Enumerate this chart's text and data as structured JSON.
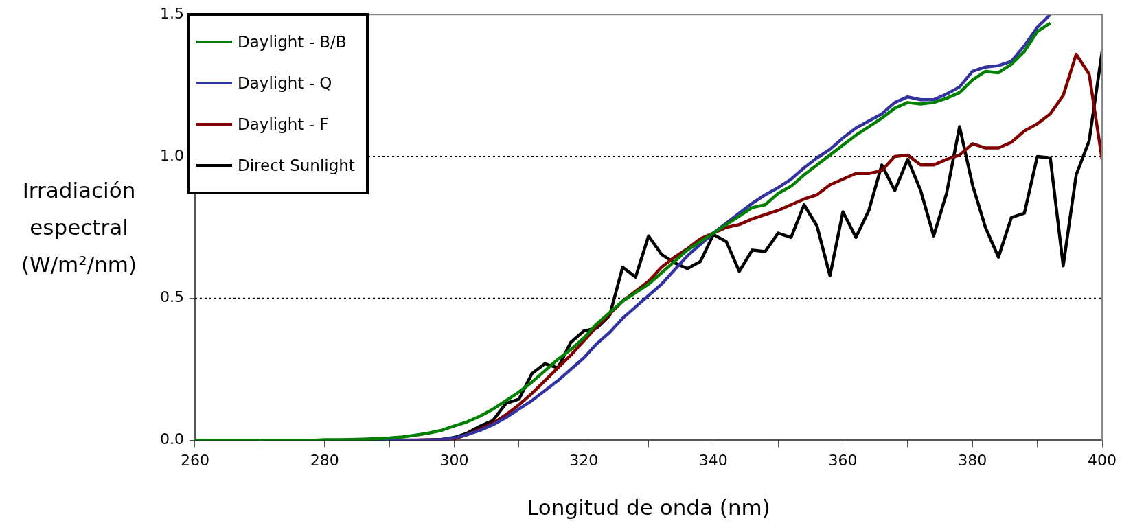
{
  "chart_data": {
    "type": "line",
    "xlabel": "Longitud de onda (nm)",
    "ylabel": "Irradiación espectral (W/m²/nm)",
    "x": [
      260,
      262,
      264,
      266,
      268,
      270,
      272,
      274,
      276,
      278,
      280,
      282,
      284,
      286,
      288,
      290,
      292,
      294,
      296,
      298,
      300,
      302,
      304,
      306,
      308,
      310,
      312,
      314,
      316,
      318,
      320,
      322,
      324,
      326,
      328,
      330,
      332,
      334,
      336,
      338,
      340,
      342,
      344,
      346,
      348,
      350,
      352,
      354,
      356,
      358,
      360,
      362,
      364,
      366,
      368,
      370,
      372,
      374,
      376,
      378,
      380,
      382,
      384,
      386,
      388,
      390,
      392,
      394,
      396,
      398,
      400
    ],
    "series": [
      {
        "name": "Daylight - B/B",
        "color": "#008000",
        "values": [
          0,
          0,
          0,
          0,
          0,
          0,
          0,
          0,
          0,
          0,
          0.002,
          0.002,
          0.003,
          0.004,
          0.006,
          0.008,
          0.012,
          0.018,
          0.025,
          0.035,
          0.05,
          0.065,
          0.085,
          0.11,
          0.14,
          0.17,
          0.205,
          0.245,
          0.285,
          0.32,
          0.36,
          0.41,
          0.45,
          0.49,
          0.52,
          0.55,
          0.59,
          0.63,
          0.67,
          0.7,
          0.73,
          0.76,
          0.79,
          0.82,
          0.83,
          0.87,
          0.895,
          0.935,
          0.97,
          1.005,
          1.04,
          1.075,
          1.105,
          1.135,
          1.17,
          1.19,
          1.185,
          1.19,
          1.205,
          1.225,
          1.27,
          1.3,
          1.295,
          1.325,
          1.37,
          1.44,
          1.47,
          null,
          null,
          null,
          null
        ]
      },
      {
        "name": "Daylight - Q",
        "color": "#3333a0",
        "values": [
          null,
          null,
          null,
          null,
          null,
          null,
          null,
          null,
          null,
          null,
          null,
          null,
          null,
          null,
          0,
          0,
          0,
          0,
          0.001,
          0.003,
          0.008,
          0.02,
          0.035,
          0.055,
          0.08,
          0.11,
          0.14,
          0.175,
          0.21,
          0.25,
          0.29,
          0.34,
          0.38,
          0.43,
          0.47,
          0.51,
          0.55,
          0.6,
          0.65,
          0.69,
          0.73,
          0.765,
          0.8,
          0.835,
          0.865,
          0.89,
          0.92,
          0.96,
          0.995,
          1.025,
          1.065,
          1.1,
          1.125,
          1.15,
          1.19,
          1.21,
          1.2,
          1.2,
          1.22,
          1.245,
          1.3,
          1.315,
          1.32,
          1.335,
          1.39,
          1.455,
          1.5,
          null,
          null,
          null,
          null
        ]
      },
      {
        "name": "Daylight - F",
        "color": "#800000",
        "values": [
          null,
          null,
          null,
          null,
          null,
          null,
          null,
          null,
          null,
          null,
          null,
          null,
          null,
          null,
          null,
          null,
          0.001,
          0.001,
          0.002,
          0.003,
          0.005,
          0.02,
          0.04,
          0.06,
          0.09,
          0.125,
          0.165,
          0.21,
          0.255,
          0.3,
          0.35,
          0.4,
          0.445,
          0.49,
          0.525,
          0.56,
          0.61,
          0.645,
          0.675,
          0.71,
          0.73,
          0.75,
          0.76,
          0.78,
          0.795,
          0.81,
          0.83,
          0.85,
          0.865,
          0.9,
          0.92,
          0.94,
          0.94,
          0.95,
          1.0,
          1.005,
          0.97,
          0.97,
          0.99,
          1.005,
          1.045,
          1.03,
          1.03,
          1.05,
          1.09,
          1.115,
          1.15,
          1.215,
          1.36,
          1.29,
          0.99
        ]
      },
      {
        "name": "Direct Sunlight",
        "color": "#000000",
        "values": [
          0,
          0,
          0,
          0,
          0,
          0,
          0,
          0,
          0,
          0,
          0,
          0,
          0,
          0,
          0,
          0,
          0,
          0,
          0,
          0.003,
          0.01,
          0.025,
          0.05,
          0.07,
          0.13,
          0.145,
          0.235,
          0.27,
          0.255,
          0.345,
          0.385,
          0.395,
          0.44,
          0.61,
          0.575,
          0.72,
          0.655,
          0.625,
          0.605,
          0.63,
          0.725,
          0.7,
          0.595,
          0.67,
          0.665,
          0.73,
          0.715,
          0.83,
          0.755,
          0.58,
          0.805,
          0.715,
          0.81,
          0.97,
          0.88,
          0.99,
          0.88,
          0.72,
          0.87,
          1.105,
          0.9,
          0.75,
          0.645,
          0.785,
          0.8,
          1.0,
          0.995,
          0.615,
          0.935,
          1.055,
          1.37
        ]
      }
    ],
    "xlim": [
      260,
      400
    ],
    "xticks": [
      260,
      {
        "value": 270,
        "label": null
      },
      280,
      {
        "value": 290,
        "label": null
      },
      300,
      {
        "value": 310,
        "label": null
      },
      320,
      {
        "value": 330,
        "label": null
      },
      340,
      {
        "value": 350,
        "label": null
      },
      360,
      {
        "value": 370,
        "label": null
      },
      380,
      {
        "value": 390,
        "label": null
      },
      400
    ],
    "ylim": [
      0,
      1.5
    ],
    "yticks": [
      {
        "value": 0,
        "label": "0.0"
      },
      {
        "value": 0.5,
        "label": "0.5"
      },
      {
        "value": 1,
        "label": "1.0"
      },
      {
        "value": 1.5,
        "label": "1.5"
      }
    ],
    "grid": "y",
    "legend": "top left",
    "marker": "none",
    "line_style": "solid"
  }
}
